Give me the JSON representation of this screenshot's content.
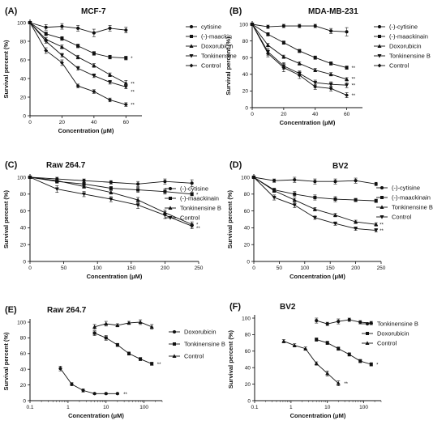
{
  "figure": {
    "background": "#ffffff",
    "ink": "#111111"
  },
  "chart_data": [
    {
      "type": "line",
      "panel_label": "(A)",
      "title": "MCF-7",
      "xlabel": "Concentration (μM)",
      "ylabel": "Survival percent (%)",
      "xscale": "linear",
      "xlim": [
        0,
        70
      ],
      "ylim": [
        0,
        100
      ],
      "xticks": [
        0,
        20,
        40,
        60
      ],
      "yticks": [
        0,
        20,
        40,
        60,
        80,
        100
      ],
      "legend_position": "right",
      "series": [
        {
          "name": "cytisine",
          "marker": "circle",
          "x": [
            0,
            10,
            20,
            30,
            40,
            50,
            60
          ],
          "y": [
            100,
            95,
            96,
            94,
            89,
            94,
            92
          ],
          "err": [
            0,
            3,
            3,
            3,
            4,
            3,
            3
          ]
        },
        {
          "name": "(-)-maackin",
          "marker": "square",
          "x": [
            0,
            10,
            20,
            30,
            40,
            50,
            60
          ],
          "y": [
            100,
            88,
            83,
            75,
            67,
            63,
            62
          ],
          "err": [
            0,
            2,
            2,
            2,
            2,
            2,
            2
          ]
        },
        {
          "name": "Doxorubicin",
          "marker": "triangle-up",
          "x": [
            0,
            10,
            20,
            30,
            40,
            50,
            60
          ],
          "y": [
            100,
            82,
            74,
            63,
            54,
            44,
            35
          ],
          "err": [
            0,
            2,
            2,
            2,
            2,
            2,
            3
          ]
        },
        {
          "name": "Tonkinensine",
          "marker": "triangle-down",
          "x": [
            0,
            10,
            20,
            30,
            40,
            50,
            60
          ],
          "y": [
            100,
            80,
            65,
            51,
            43,
            36,
            31
          ],
          "err": [
            0,
            2,
            2,
            2,
            2,
            2,
            2
          ]
        },
        {
          "name": "Control",
          "marker": "diamond",
          "x": [
            0,
            10,
            20,
            30,
            40,
            50,
            60
          ],
          "y": [
            100,
            70,
            57,
            32,
            26,
            17,
            12
          ],
          "err": [
            0,
            3,
            3,
            2,
            2,
            2,
            2
          ]
        }
      ],
      "annotations": [
        {
          "text": "*",
          "x": 62,
          "y": 62
        },
        {
          "text": "**",
          "x": 62,
          "y": 35
        },
        {
          "text": "**",
          "x": 62,
          "y": 26
        },
        {
          "text": "**",
          "x": 62,
          "y": 12
        }
      ]
    },
    {
      "type": "line",
      "panel_label": "(B)",
      "title": "MDA-MB-231",
      "xlabel": "Concentration (μM)",
      "ylabel": "Survival percent (%)",
      "xscale": "linear",
      "xlim": [
        0,
        70
      ],
      "ylim": [
        0,
        100
      ],
      "xticks": [
        0,
        20,
        40,
        60
      ],
      "yticks": [
        0,
        20,
        40,
        60,
        80,
        100
      ],
      "legend_position": "right",
      "series": [
        {
          "name": "(-)-cytisine",
          "marker": "circle",
          "x": [
            0,
            10,
            20,
            30,
            40,
            50,
            60
          ],
          "y": [
            100,
            97,
            98,
            98,
            98,
            92,
            91
          ],
          "err": [
            0,
            2,
            2,
            2,
            2,
            3,
            5
          ]
        },
        {
          "name": "(-)-maackinain",
          "marker": "square",
          "x": [
            0,
            10,
            20,
            30,
            40,
            50,
            60
          ],
          "y": [
            100,
            88,
            78,
            68,
            60,
            53,
            48
          ],
          "err": [
            0,
            2,
            2,
            2,
            2,
            2,
            2
          ]
        },
        {
          "name": "Doxorubicin",
          "marker": "triangle-up",
          "x": [
            0,
            10,
            20,
            30,
            40,
            50,
            60
          ],
          "y": [
            100,
            75,
            61,
            53,
            45,
            40,
            34
          ],
          "err": [
            0,
            2,
            2,
            2,
            2,
            2,
            2
          ]
        },
        {
          "name": "Tonkinensine B",
          "marker": "triangle-down",
          "x": [
            0,
            10,
            20,
            30,
            40,
            50,
            60
          ],
          "y": [
            100,
            67,
            50,
            41,
            30,
            28,
            27
          ],
          "err": [
            0,
            4,
            4,
            3,
            3,
            3,
            3
          ]
        },
        {
          "name": "Control",
          "marker": "diamond",
          "x": [
            0,
            10,
            20,
            30,
            40,
            50,
            60
          ],
          "y": [
            100,
            65,
            48,
            39,
            25,
            23,
            15
          ],
          "err": [
            0,
            4,
            5,
            4,
            3,
            3,
            3
          ]
        }
      ],
      "annotations": [
        {
          "text": "**",
          "x": 62,
          "y": 48
        },
        {
          "text": "**",
          "x": 62,
          "y": 35
        },
        {
          "text": "**",
          "x": 62,
          "y": 27
        },
        {
          "text": "**",
          "x": 62,
          "y": 15
        }
      ]
    },
    {
      "type": "line",
      "panel_label": "(C)",
      "title": "Raw 264.7",
      "xlabel": "Concentration (μM)",
      "ylabel": "Survival percent (%)",
      "xscale": "linear",
      "xlim": [
        0,
        250
      ],
      "ylim": [
        0,
        100
      ],
      "xticks": [
        0,
        50,
        100,
        150,
        200,
        250
      ],
      "yticks": [
        0,
        20,
        40,
        60,
        80,
        100
      ],
      "legend_position": "right",
      "series": [
        {
          "name": "(-)-cytisine",
          "marker": "circle",
          "x": [
            0,
            40,
            80,
            120,
            160,
            200,
            240
          ],
          "y": [
            100,
            98,
            96,
            94,
            92,
            95,
            93
          ],
          "err": [
            0,
            2,
            2,
            2,
            3,
            3,
            4
          ]
        },
        {
          "name": "(-)-maackinain",
          "marker": "square",
          "x": [
            0,
            40,
            80,
            120,
            160,
            200,
            240
          ],
          "y": [
            100,
            95,
            92,
            87,
            85,
            83,
            80
          ],
          "err": [
            0,
            2,
            2,
            2,
            3,
            3,
            2
          ]
        },
        {
          "name": "Tonkinensine B",
          "marker": "triangle-up",
          "x": [
            0,
            40,
            80,
            120,
            160,
            200,
            240
          ],
          "y": [
            100,
            96,
            89,
            82,
            73,
            58,
            44
          ],
          "err": [
            0,
            2,
            2,
            2,
            3,
            3,
            3
          ]
        },
        {
          "name": "Control",
          "marker": "triangle-down",
          "x": [
            0,
            40,
            80,
            120,
            160,
            200,
            240
          ],
          "y": [
            100,
            86,
            80,
            74,
            67,
            55,
            42
          ],
          "err": [
            0,
            4,
            3,
            3,
            4,
            4,
            3
          ]
        }
      ],
      "annotations": [
        {
          "text": "*",
          "x": 244,
          "y": 80
        },
        {
          "text": "*",
          "x": 244,
          "y": 44
        },
        {
          "text": "**",
          "x": 244,
          "y": 40
        }
      ]
    },
    {
      "type": "line",
      "panel_label": "(D)",
      "title": "BV2",
      "xlabel": "Concentration (μM)",
      "ylabel": "Survival percent (%)",
      "xscale": "linear",
      "xlim": [
        0,
        250
      ],
      "ylim": [
        0,
        100
      ],
      "xticks": [
        0,
        50,
        100,
        150,
        200,
        250
      ],
      "yticks": [
        0,
        20,
        40,
        60,
        80,
        100
      ],
      "legend_position": "right",
      "series": [
        {
          "name": "(-)-cytisine",
          "marker": "circle",
          "x": [
            0,
            40,
            80,
            120,
            160,
            200,
            240
          ],
          "y": [
            100,
            96,
            97,
            95,
            95,
            96,
            92
          ],
          "err": [
            0,
            2,
            3,
            3,
            3,
            3,
            2
          ]
        },
        {
          "name": "(-)-maackinain",
          "marker": "square",
          "x": [
            0,
            40,
            80,
            120,
            160,
            200,
            240
          ],
          "y": [
            100,
            85,
            80,
            76,
            74,
            73,
            72
          ],
          "err": [
            0,
            2,
            3,
            3,
            3,
            2,
            2
          ]
        },
        {
          "name": "Tonkinensine B",
          "marker": "triangle-up",
          "x": [
            0,
            40,
            80,
            120,
            160,
            200,
            240
          ],
          "y": [
            100,
            84,
            73,
            62,
            55,
            47,
            44
          ],
          "err": [
            0,
            2,
            2,
            2,
            2,
            2,
            2
          ]
        },
        {
          "name": "Control",
          "marker": "triangle-down",
          "x": [
            0,
            40,
            80,
            120,
            160,
            200,
            240
          ],
          "y": [
            100,
            76,
            67,
            52,
            45,
            39,
            37
          ],
          "err": [
            0,
            3,
            3,
            2,
            2,
            2,
            2
          ]
        }
      ],
      "annotations": [
        {
          "text": "**",
          "x": 244,
          "y": 44
        },
        {
          "text": "**",
          "x": 244,
          "y": 37
        }
      ]
    },
    {
      "type": "line",
      "panel_label": "(E)",
      "title": "Raw 264.7",
      "xlabel": "Concentration (μM)",
      "ylabel": "Survival percent (%)",
      "xscale": "log",
      "xlim": [
        0.1,
        300
      ],
      "ylim": [
        0,
        100
      ],
      "xticks": [
        0.1,
        1,
        10,
        100
      ],
      "xtick_labels": [
        "0.1",
        "1",
        "10",
        "100"
      ],
      "yticks": [
        0,
        20,
        40,
        60,
        80,
        100
      ],
      "legend_position": "right",
      "series": [
        {
          "name": "Doxorubicin",
          "marker": "circle",
          "x": [
            0.63,
            1.25,
            2.5,
            5,
            10,
            20
          ],
          "y": [
            41,
            21,
            13,
            9,
            9,
            9
          ],
          "err": [
            3,
            2,
            2,
            1,
            1,
            1
          ]
        },
        {
          "name": "Tonkinensine B",
          "marker": "square",
          "x": [
            5,
            10,
            20,
            40,
            80,
            160
          ],
          "y": [
            86,
            80,
            71,
            60,
            53,
            47
          ],
          "err": [
            3,
            3,
            2,
            2,
            2,
            2
          ]
        },
        {
          "name": "Control",
          "marker": "triangle-up",
          "x": [
            5,
            10,
            20,
            40,
            80,
            160
          ],
          "y": [
            94,
            98,
            96,
            99,
            100,
            94
          ],
          "err": [
            3,
            3,
            2,
            2,
            3,
            3
          ]
        }
      ],
      "annotations": [
        {
          "text": "**",
          "x": 26,
          "y": 9
        },
        {
          "text": "**",
          "x": 200,
          "y": 47
        }
      ]
    },
    {
      "type": "line",
      "panel_label": "(F)",
      "title": "BV2",
      "xlabel": "Concentration (μM)",
      "ylabel": "Survival percent (%)",
      "xscale": "log",
      "xlim": [
        0.1,
        300
      ],
      "ylim": [
        0,
        100
      ],
      "xticks": [
        0.1,
        1,
        10,
        100
      ],
      "xtick_labels": [
        "0.1",
        "1",
        "10",
        "100"
      ],
      "yticks": [
        0,
        20,
        40,
        60,
        80,
        100
      ],
      "legend_position": "right",
      "series": [
        {
          "name": "Tonkinensine B",
          "marker": "circle",
          "x": [
            5,
            10,
            20,
            40,
            80,
            160
          ],
          "y": [
            97,
            93,
            96,
            98,
            95,
            94
          ],
          "err": [
            3,
            2,
            3,
            2,
            2,
            2
          ]
        },
        {
          "name": "Doxorubicin",
          "marker": "square",
          "x": [
            5,
            10,
            20,
            40,
            80,
            160
          ],
          "y": [
            74,
            70,
            63,
            56,
            48,
            44
          ],
          "err": [
            2,
            2,
            2,
            2,
            2,
            2
          ]
        },
        {
          "name": "Control",
          "marker": "triangle-up",
          "x": [
            0.63,
            1.25,
            2.5,
            5,
            10,
            20
          ],
          "y": [
            72,
            67,
            63,
            45,
            33,
            21
          ],
          "err": [
            2,
            2,
            2,
            2,
            3,
            3
          ]
        }
      ],
      "annotations": [
        {
          "text": "**",
          "x": 26,
          "y": 21
        },
        {
          "text": "*",
          "x": 200,
          "y": 44
        }
      ]
    }
  ]
}
